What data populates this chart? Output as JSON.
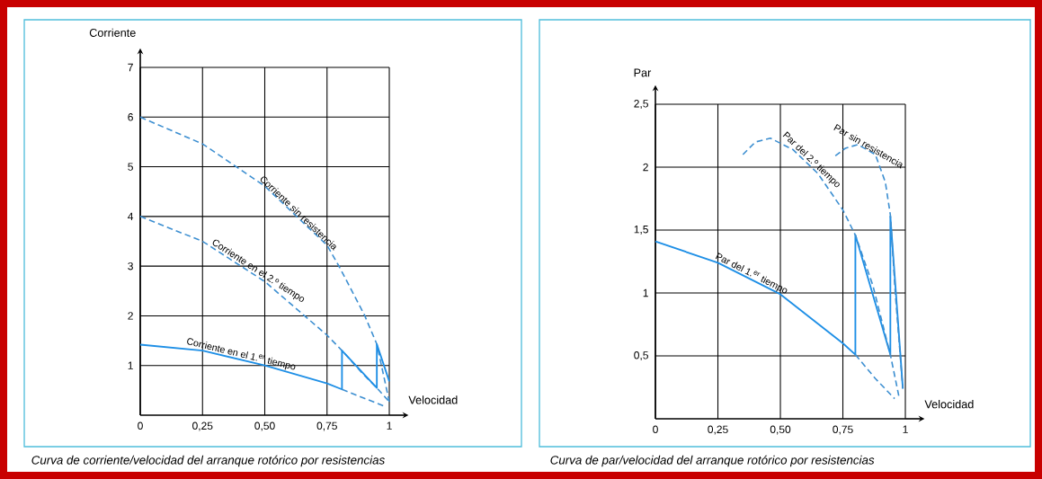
{
  "chart_data": [
    {
      "type": "line",
      "xlabel": "Velocidad",
      "ylabel": "Corriente",
      "xlim": [
        0,
        1
      ],
      "ylim": [
        0,
        7
      ],
      "xticks": [
        {
          "value": 0,
          "label": "0"
        },
        {
          "value": 0.25,
          "label": "0,25"
        },
        {
          "value": 0.5,
          "label": "0,50"
        },
        {
          "value": 0.75,
          "label": "0,75"
        },
        {
          "value": 1,
          "label": "1"
        }
      ],
      "yticks": [
        1,
        2,
        3,
        4,
        5,
        6,
        7
      ],
      "grid": true,
      "annotations": [
        "Curva de corriente/velocidad del arranque rotórico por resistencias"
      ],
      "series": [
        {
          "name": "Corriente sin resistencia",
          "color": "#3d8fd1",
          "line_style": "dashed",
          "x": [
            0,
            0.25,
            0.5,
            0.75,
            0.8,
            0.9,
            0.95,
            1.0
          ],
          "values": [
            6,
            5.46,
            4.61,
            3.42,
            2.98,
            2.02,
            1.43,
            0.27
          ]
        },
        {
          "name": "Corriente en el 2.º tiempo",
          "color": "#3d8fd1",
          "line_style": "dashed",
          "x": [
            0,
            0.25,
            0.5,
            0.75,
            0.81,
            0.9,
            0.95,
            1.0
          ],
          "values": [
            4,
            3.5,
            2.69,
            1.61,
            1.3,
            0.8,
            0.55,
            0.27
          ]
        },
        {
          "name": "Corriente en el 1.$^{er}$ tiempo",
          "color": "#1e8fe6",
          "line_style": "solid",
          "x": [
            0,
            0.25,
            0.5,
            0.75,
            0.81,
            0.81,
            0.95,
            0.95,
            1.0
          ],
          "values": [
            1.42,
            1.3,
            1.0,
            0.64,
            0.52,
            1.3,
            0.55,
            1.43,
            0.68
          ]
        },
        {
          "color": "#3d8fd1",
          "line_style": "dashed",
          "x": [
            0.81,
            0.9,
            0.98
          ],
          "values": [
            0.52,
            0.34,
            0.18
          ]
        }
      ]
    },
    {
      "type": "line",
      "xlabel": "Velocidad",
      "ylabel": "Par",
      "xlim": [
        0,
        1
      ],
      "ylim": [
        0,
        2.5
      ],
      "xticks": [
        {
          "value": 0,
          "label": "0"
        },
        {
          "value": 0.25,
          "label": "0,25"
        },
        {
          "value": 0.5,
          "label": "0,50"
        },
        {
          "value": 0.75,
          "label": "0,75"
        },
        {
          "value": 1,
          "label": "1"
        }
      ],
      "yticks": [
        {
          "value": 0.5,
          "label": "0,5"
        },
        1,
        {
          "value": 1.5,
          "label": "1,5"
        },
        2,
        {
          "value": 2.5,
          "label": "2,5"
        }
      ],
      "grid": true,
      "annotations": [
        "Curva de par/velocidad del arranque rotórico por resistencias"
      ],
      "series": [
        {
          "name": "Par del 1.$^{er}$ tiempo",
          "color": "#1e8fe6",
          "line_style": "solid",
          "x": [
            0,
            0.25,
            0.5,
            0.75,
            0.8,
            0.8,
            0.94,
            0.94,
            0.99
          ],
          "values": [
            1.41,
            1.24,
            0.99,
            0.6,
            0.51,
            1.46,
            0.51,
            1.61,
            0.24
          ]
        },
        {
          "name": "Par del 2.º tiempo",
          "color": "#3d8fd1",
          "line_style": "dashed",
          "x": [
            0.35,
            0.4,
            0.46,
            0.55,
            0.65,
            0.75,
            0.8,
            0.87,
            0.94,
            0.975
          ],
          "values": [
            2.1,
            2.2,
            2.23,
            2.14,
            1.95,
            1.66,
            1.46,
            1.06,
            0.51,
            0.17
          ]
        },
        {
          "name": "Par sin resistencia",
          "color": "#3d8fd1",
          "line_style": "dashed",
          "x": [
            0.72,
            0.76,
            0.81,
            0.88,
            0.92,
            0.94,
            0.96,
            0.99
          ],
          "values": [
            2.09,
            2.15,
            2.18,
            2.1,
            1.88,
            1.62,
            0.99,
            0.24
          ]
        },
        {
          "color": "#3d8fd1",
          "line_style": "dashed",
          "x": [
            0.8,
            0.88,
            0.957
          ],
          "values": [
            0.51,
            0.32,
            0.16
          ]
        }
      ]
    }
  ]
}
